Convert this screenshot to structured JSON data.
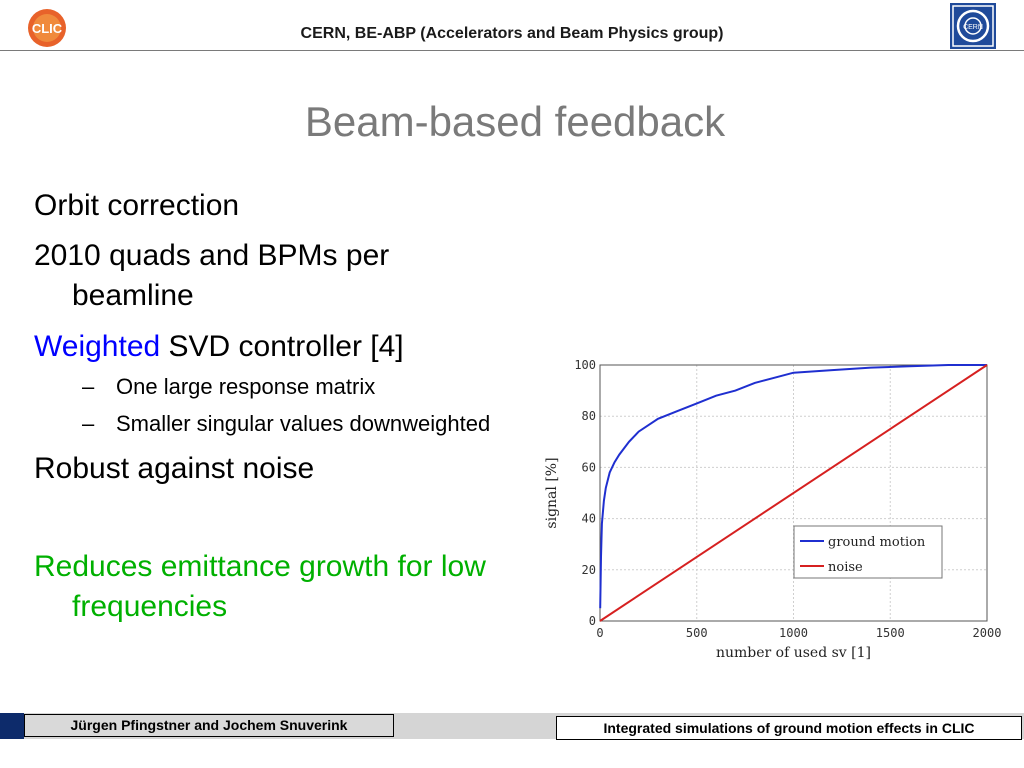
{
  "header": {
    "title": "CERN, BE-ABP (Accelerators and Beam Physics group)",
    "clic_logo_text": "CLIC",
    "cern_logo_text": "CERN"
  },
  "slide": {
    "title": "Beam-based feedback",
    "bullets": {
      "b1": "Orbit correction",
      "b2_line1": "2010 quads and BPMs per",
      "b2_line2": "beamline",
      "b3_highlight": "Weighted",
      "b3_rest": " SVD controller [4]",
      "sub1": "One large response matrix",
      "sub2": "Smaller singular values downweighted",
      "sub_dash": "–",
      "b4": "Robust against noise",
      "b5_line1": "Reduces emittance growth for low",
      "b5_line2": "frequencies"
    }
  },
  "chart_data": {
    "type": "line",
    "xlabel": "number of used sv [1]",
    "ylabel": "signal [%]",
    "xlim": [
      0,
      2000
    ],
    "ylim": [
      0,
      100
    ],
    "xticks": [
      0,
      500,
      1000,
      1500,
      2000
    ],
    "yticks": [
      0,
      20,
      40,
      60,
      80,
      100
    ],
    "grid": true,
    "legend_position": "bottom-right",
    "series": [
      {
        "name": "ground motion",
        "color": "#1f2fd0",
        "x": [
          1,
          5,
          10,
          20,
          30,
          50,
          75,
          100,
          150,
          200,
          300,
          400,
          500,
          600,
          700,
          800,
          900,
          1000,
          1200,
          1400,
          1600,
          1800,
          2000
        ],
        "y": [
          5,
          25,
          38,
          47,
          52,
          58,
          62,
          65,
          70,
          74,
          79,
          82,
          85,
          88,
          90,
          93,
          95,
          97,
          98,
          99,
          99.5,
          100,
          100
        ]
      },
      {
        "name": "noise",
        "color": "#d62020",
        "x": [
          0,
          2000
        ],
        "y": [
          0,
          100
        ]
      }
    ]
  },
  "footer": {
    "authors": "Jürgen Pfingstner and Jochem Snuverink",
    "talk_title": "Integrated simulations of ground motion effects in CLIC"
  }
}
